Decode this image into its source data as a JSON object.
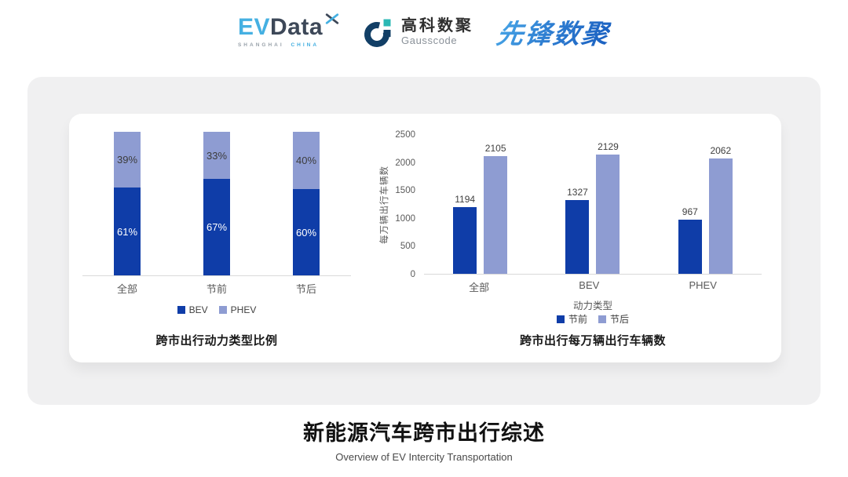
{
  "header": {
    "evdata": {
      "part1": "EV",
      "part2": "Data",
      "sub_left": "SHANGHAI",
      "sub_right": "CHINA"
    },
    "gausscode": {
      "name_cn": "高科数聚",
      "name_en": "Gausscode"
    },
    "xianfeng": {
      "name": "先锋数聚"
    }
  },
  "footer": {
    "title": "新能源汽车跨市出行综述",
    "subtitle": "Overview of EV Intercity Transportation"
  },
  "colors": {
    "bar_dark_blue": "#0f3da8",
    "bar_light_purple": "#8e9cd2",
    "axis_line": "#d9d9d9",
    "axis_text": "#595959",
    "card_bg": "#f0f0f1",
    "evdata_blue": "#45b0e2",
    "evdata_dark": "#3d4858",
    "gausscode_navy": "#123f66",
    "gausscode_teal": "#2bb8b4",
    "xianfeng_blue": "#2a7bd0"
  },
  "chart_data": [
    {
      "type": "bar",
      "subtype": "stacked_percent",
      "title": "跨市出行动力类型比例",
      "categories": [
        "全部",
        "节前",
        "节后"
      ],
      "series": [
        {
          "name": "BEV",
          "color": "#0f3da8",
          "label_color": "#ffffff",
          "values": [
            61,
            67,
            60
          ]
        },
        {
          "name": "PHEV",
          "color": "#8e9cd2",
          "label_color": "#3c3c3c",
          "values": [
            39,
            33,
            40
          ]
        }
      ],
      "value_suffix": "%",
      "ylim": [
        0,
        100
      ],
      "grid": false,
      "legend_position": "bottom"
    },
    {
      "type": "bar",
      "subtype": "grouped",
      "title": "跨市出行每万辆出行车辆数",
      "categories": [
        "全部",
        "BEV",
        "PHEV"
      ],
      "xlabel": "动力类型",
      "ylabel": "每万辆出行车辆数",
      "yticks": [
        0,
        500,
        1000,
        1500,
        2000,
        2500
      ],
      "ylim": [
        0,
        2500
      ],
      "series": [
        {
          "name": "节前",
          "color": "#0f3da8",
          "values": [
            1194,
            1327,
            967
          ]
        },
        {
          "name": "节后",
          "color": "#8e9cd2",
          "values": [
            2105,
            2129,
            2062
          ]
        }
      ],
      "grid": false,
      "legend_position": "bottom"
    }
  ]
}
